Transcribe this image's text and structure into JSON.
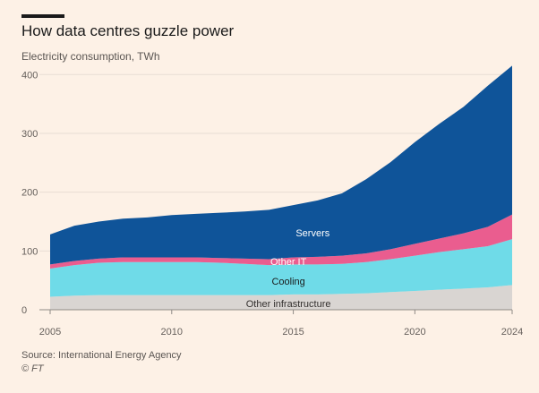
{
  "header": {
    "title": "How data centres guzzle power",
    "subtitle": "Electricity consumption, TWh"
  },
  "footer": {
    "source": "Source: International Energy Agency",
    "credit": "© FT"
  },
  "chart_data": {
    "type": "area",
    "stacked": true,
    "title": "How data centres guzzle power",
    "subtitle": "Electricity consumption, TWh",
    "xlabel": "",
    "ylabel": "",
    "x": [
      2005,
      2006,
      2007,
      2008,
      2009,
      2010,
      2011,
      2012,
      2013,
      2014,
      2015,
      2016,
      2017,
      2018,
      2019,
      2020,
      2021,
      2022,
      2023,
      2024
    ],
    "xticks": [
      2005,
      2010,
      2015,
      2020,
      2024
    ],
    "yticks": [
      0,
      100,
      200,
      300,
      400
    ],
    "xlim": [
      2005,
      2024
    ],
    "ylim": [
      0,
      420
    ],
    "grid": true,
    "colors": {
      "other_infrastructure": "#d9d5d2",
      "cooling": "#6fdbe8",
      "other_it": "#ea5d8f",
      "servers": "#0f5499",
      "grid": "#e8ddd4"
    },
    "series": [
      {
        "name": "Other infrastructure",
        "key": "other_infrastructure",
        "values": [
          22,
          24,
          25,
          25,
          25,
          25,
          25,
          25,
          25,
          25,
          26,
          26,
          27,
          28,
          30,
          32,
          34,
          36,
          38,
          42
        ]
      },
      {
        "name": "Cooling",
        "key": "cooling",
        "values": [
          48,
          52,
          55,
          56,
          56,
          56,
          56,
          55,
          53,
          51,
          51,
          51,
          51,
          53,
          56,
          60,
          64,
          67,
          70,
          78
        ]
      },
      {
        "name": "Other IT",
        "key": "other_it",
        "values": [
          7,
          7,
          7,
          8,
          8,
          8,
          8,
          8,
          9,
          10,
          12,
          13,
          14,
          15,
          17,
          20,
          23,
          27,
          33,
          42
        ]
      },
      {
        "name": "Servers",
        "key": "servers",
        "values": [
          51,
          60,
          63,
          66,
          68,
          72,
          74,
          77,
          80,
          84,
          89,
          96,
          106,
          126,
          148,
          173,
          195,
          215,
          240,
          253
        ]
      }
    ],
    "labels": [
      {
        "series": "servers",
        "text": "Servers",
        "x": 2015.8,
        "y": 131,
        "color": "#ffffff"
      },
      {
        "series": "other_it",
        "text": "Other IT",
        "x": 2014.8,
        "y": 82,
        "color": "#ffffff"
      },
      {
        "series": "cooling",
        "text": "Cooling",
        "x": 2014.8,
        "y": 49,
        "color": "#1a1a1a"
      },
      {
        "series": "other_infrastructure",
        "text": "Other infrastructure",
        "x": 2014.8,
        "y": 11,
        "color": "#33302e"
      }
    ]
  }
}
